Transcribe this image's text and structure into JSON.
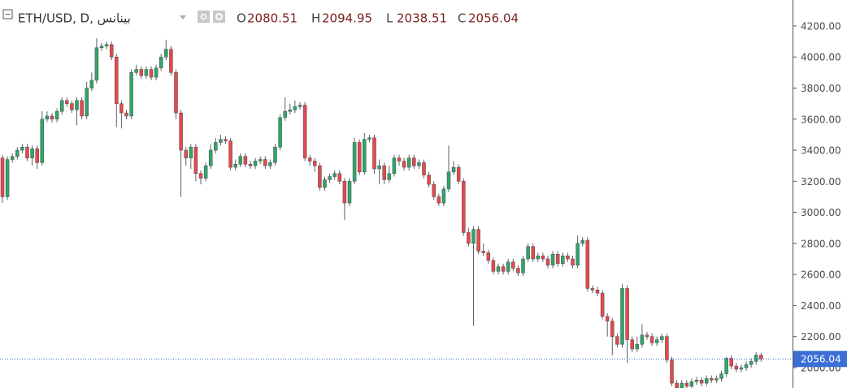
{
  "chart_data": {
    "type": "candlestick",
    "symbol": "ETH/USD, D, بينانس",
    "ohlc_labels": [
      "O",
      "H",
      "L",
      "C"
    ],
    "up_color": "#2ea66a",
    "down_color": "#e5484d",
    "wick_color": "#5d606b",
    "price_line_color": "#3b6fd6",
    "grid": false,
    "ylim": [
      1869,
      4367
    ],
    "yticks": [
      {
        "value": 2000,
        "label": "2000.00"
      },
      {
        "value": 2200,
        "label": "2200.00"
      },
      {
        "value": 2400,
        "label": "2400.00"
      },
      {
        "value": 2600,
        "label": "2600.00"
      },
      {
        "value": 2800,
        "label": "2800.00"
      },
      {
        "value": 3000,
        "label": "3000.00"
      },
      {
        "value": 3200,
        "label": "3200.00"
      },
      {
        "value": 3400,
        "label": "3400.00"
      },
      {
        "value": 3600,
        "label": "3600.00"
      },
      {
        "value": 3800,
        "label": "3800.00"
      },
      {
        "value": 4000,
        "label": "4000.00"
      },
      {
        "value": 4200,
        "label": "4200.00"
      }
    ],
    "open": [
      3350,
      3100,
      3340,
      3360,
      3400,
      3420,
      3350,
      3410,
      3320,
      3600,
      3620,
      3600,
      3650,
      3720,
      3700,
      3660,
      3720,
      3620,
      3800,
      3850,
      4060,
      4070,
      4080,
      4000,
      3700,
      3640,
      3620,
      3900,
      3920,
      3880,
      3920,
      3870,
      3930,
      4000,
      4050,
      3900,
      3640,
      3400,
      3350,
      3420,
      3250,
      3220,
      3300,
      3400,
      3450,
      3470,
      3460,
      3290,
      3310,
      3360,
      3310,
      3300,
      3330,
      3340,
      3300,
      3320,
      3420,
      3610,
      3650,
      3660,
      3680,
      3690,
      3350,
      3330,
      3300,
      3160,
      3210,
      3230,
      3250,
      3200,
      3060,
      3200,
      3450,
      3260,
      3470,
      3480,
      3280,
      3300,
      3210,
      3250,
      3350,
      3330,
      3290,
      3350,
      3300,
      3320,
      3240,
      3180,
      3100,
      3060,
      3150,
      3260,
      3290,
      3200,
      2870,
      2800,
      2890,
      2750,
      2740,
      2690,
      2620,
      2650,
      2620,
      2680,
      2640,
      2610,
      2700,
      2780,
      2700,
      2720,
      2700,
      2660,
      2730,
      2670,
      2720,
      2700,
      2660,
      2800,
      2820,
      2510,
      2500,
      2480,
      2330,
      2300,
      2200,
      2150,
      2510,
      2180,
      2120,
      2150,
      2210,
      2200,
      2160,
      2180,
      2200,
      2050,
      1900,
      1870,
      1900,
      1880,
      1910,
      1920,
      1900,
      1930,
      1920,
      1930,
      1960,
      2060,
      2010,
      1990,
      2000,
      2020,
      2040,
      2080.51
    ],
    "high": [
      3370,
      3360,
      3380,
      3420,
      3440,
      3440,
      3430,
      3430,
      3650,
      3650,
      3640,
      3670,
      3740,
      3740,
      3720,
      3740,
      3740,
      3840,
      3900,
      4120,
      4090,
      4100,
      4100,
      4020,
      3720,
      3660,
      3920,
      3950,
      3940,
      3940,
      3940,
      3950,
      4020,
      4110,
      4070,
      3920,
      3660,
      3420,
      3440,
      3440,
      3270,
      3320,
      3440,
      3480,
      3500,
      3490,
      3480,
      3340,
      3380,
      3380,
      3330,
      3350,
      3360,
      3360,
      3340,
      3440,
      3630,
      3740,
      3700,
      3720,
      3710,
      3710,
      3370,
      3350,
      3320,
      3230,
      3250,
      3270,
      3270,
      3220,
      3220,
      3480,
      3470,
      3510,
      3500,
      3500,
      3340,
      3320,
      3300,
      3370,
      3370,
      3350,
      3370,
      3370,
      3340,
      3340,
      3260,
      3200,
      3120,
      3170,
      3430,
      3330,
      3310,
      3220,
      2900,
      2910,
      2910,
      2800,
      2760,
      2710,
      2670,
      2670,
      2700,
      2700,
      2660,
      2720,
      2800,
      2800,
      2740,
      2740,
      2720,
      2750,
      2750,
      2740,
      2740,
      2720,
      2850,
      2840,
      2840,
      2530,
      2520,
      2500,
      2350,
      2320,
      2220,
      2540,
      2530,
      2200,
      2200,
      2280,
      2230,
      2220,
      2200,
      2220,
      2220,
      2070,
      1920,
      1920,
      1920,
      1930,
      1940,
      1940,
      1950,
      1950,
      1950,
      1980,
      2070,
      2080,
      2030,
      2020,
      2040,
      2060,
      2100,
      2094.95
    ],
    "low": [
      3060,
      3080,
      3320,
      3340,
      3380,
      3330,
      3300,
      3280,
      3300,
      3580,
      3580,
      3580,
      3630,
      3680,
      3640,
      3560,
      3600,
      3600,
      3780,
      3830,
      4040,
      4050,
      3980,
      3550,
      3540,
      3600,
      3600,
      3880,
      3860,
      3860,
      3850,
      3850,
      3910,
      3980,
      3880,
      3600,
      3100,
      3300,
      3280,
      3200,
      3180,
      3200,
      3280,
      3380,
      3430,
      3440,
      3270,
      3270,
      3290,
      3290,
      3280,
      3280,
      3310,
      3280,
      3280,
      3300,
      3400,
      3590,
      3630,
      3640,
      3660,
      3330,
      3300,
      3260,
      3140,
      3140,
      3190,
      3210,
      3180,
      2950,
      3040,
      3180,
      3240,
      3240,
      3450,
      3250,
      3180,
      3180,
      3190,
      3230,
      3300,
      3270,
      3270,
      3280,
      3280,
      3220,
      3160,
      3080,
      3040,
      3040,
      3130,
      3240,
      3180,
      2850,
      2780,
      2270,
      2730,
      2720,
      2670,
      2600,
      2600,
      2600,
      2600,
      2620,
      2590,
      2590,
      2680,
      2680,
      2680,
      2680,
      2640,
      2640,
      2650,
      2650,
      2680,
      2640,
      2640,
      2780,
      2490,
      2480,
      2460,
      2310,
      2200,
      2080,
      2130,
      2130,
      2030,
      2100,
      2100,
      2130,
      2180,
      2140,
      2140,
      2160,
      2030,
      1880,
      1850,
      1850,
      1860,
      1860,
      1890,
      1880,
      1880,
      1900,
      1900,
      1910,
      1940,
      1990,
      1970,
      1970,
      1980,
      2000,
      2020,
      2038.51
    ],
    "close": [
      3100,
      3340,
      3360,
      3400,
      3420,
      3350,
      3410,
      3320,
      3600,
      3620,
      3600,
      3650,
      3720,
      3700,
      3660,
      3720,
      3620,
      3800,
      3850,
      4060,
      4070,
      4080,
      4000,
      3700,
      3640,
      3620,
      3900,
      3920,
      3880,
      3920,
      3870,
      3930,
      4000,
      4050,
      3900,
      3640,
      3400,
      3350,
      3420,
      3250,
      3220,
      3300,
      3400,
      3450,
      3470,
      3460,
      3290,
      3310,
      3360,
      3310,
      3300,
      3330,
      3340,
      3300,
      3320,
      3420,
      3610,
      3650,
      3660,
      3680,
      3690,
      3350,
      3330,
      3300,
      3160,
      3210,
      3230,
      3250,
      3200,
      3060,
      3200,
      3450,
      3260,
      3470,
      3480,
      3280,
      3300,
      3210,
      3250,
      3350,
      3330,
      3290,
      3350,
      3300,
      3320,
      3240,
      3180,
      3100,
      3060,
      3150,
      3260,
      3290,
      3200,
      2870,
      2800,
      2890,
      2750,
      2740,
      2690,
      2620,
      2650,
      2620,
      2680,
      2640,
      2610,
      2700,
      2780,
      2700,
      2720,
      2700,
      2660,
      2730,
      2670,
      2720,
      2700,
      2660,
      2800,
      2820,
      2510,
      2500,
      2480,
      2330,
      2300,
      2200,
      2150,
      2510,
      2180,
      2120,
      2150,
      2210,
      2200,
      2160,
      2180,
      2200,
      2050,
      1900,
      1870,
      1900,
      1880,
      1910,
      1920,
      1900,
      1930,
      1920,
      1930,
      1960,
      2060,
      2010,
      1990,
      2000,
      2020,
      2040,
      2080.51,
      2056.04
    ]
  }
}
